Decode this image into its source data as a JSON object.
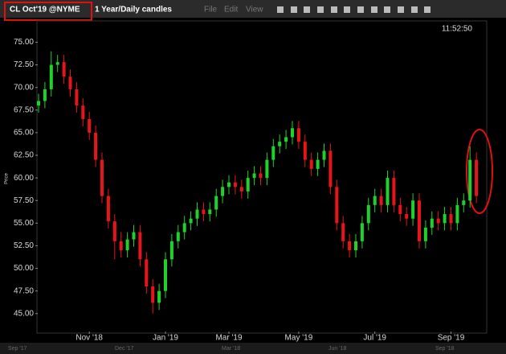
{
  "toolbar": {
    "symbol": "CL Oct'19 @NYME",
    "timeframe": "1 Year/Daily candles",
    "menu": [
      "File",
      "Edit",
      "View"
    ]
  },
  "chart_data": {
    "type": "candlestick",
    "timestamp": "11:52:50",
    "ylabel": "Price",
    "up_color": "#1fd12a",
    "down_color": "#e8141b",
    "categories": [
      null,
      null,
      null,
      null,
      null,
      null,
      null,
      null,
      "Nov '18",
      null,
      null,
      null,
      null,
      null,
      null,
      null,
      null,
      null,
      null,
      null,
      "Jan '19",
      null,
      null,
      null,
      null,
      null,
      null,
      null,
      null,
      null,
      "Mar '19",
      null,
      null,
      null,
      null,
      null,
      null,
      null,
      null,
      null,
      null,
      "May '19",
      null,
      null,
      null,
      null,
      null,
      null,
      null,
      null,
      null,
      null,
      null,
      "Jul '19",
      null,
      null,
      null,
      null,
      null,
      null,
      null,
      null,
      null,
      null,
      null,
      "Sep '19",
      null,
      null,
      null,
      null
    ],
    "open": [
      68,
      68.5,
      69.8,
      72.5,
      72.8,
      71.2,
      69.8,
      68,
      66.5,
      65,
      62,
      58,
      55.2,
      53,
      52,
      53.2,
      54,
      51,
      48,
      46.2,
      47.5,
      51,
      53,
      54,
      55,
      55.5,
      56.5,
      56,
      56.5,
      58,
      59,
      59.5,
      59,
      58.5,
      60,
      60.5,
      60,
      62,
      63.5,
      64,
      64.5,
      65.5,
      64,
      62,
      61,
      62,
      63,
      59,
      55,
      53,
      52,
      53,
      55,
      57,
      58,
      57,
      60,
      57,
      56,
      55.5,
      57.5,
      53,
      54.5,
      55.5,
      55,
      56,
      55,
      57,
      57.5,
      62
    ],
    "high": [
      69.3,
      70.6,
      74,
      73.6,
      73.6,
      72,
      70.6,
      68.8,
      67.3,
      65.8,
      62.8,
      58.8,
      56,
      54,
      54,
      54.8,
      54.8,
      51.8,
      48.8,
      48.3,
      51.8,
      53.8,
      54.8,
      55.8,
      56.3,
      57.3,
      57.3,
      57.3,
      58.8,
      59.8,
      60.3,
      60.3,
      59.8,
      60.8,
      61.3,
      61.3,
      62.8,
      64.3,
      64.8,
      65.3,
      66.3,
      66.3,
      64.8,
      62.8,
      62.8,
      63.8,
      63.8,
      59.8,
      55.8,
      53.8,
      53.8,
      55.8,
      57.8,
      58.8,
      58.8,
      60.8,
      60.8,
      57.8,
      56.8,
      58.3,
      58.3,
      55.3,
      56.3,
      56.3,
      56.8,
      56.8,
      57.8,
      58.3,
      63.5,
      62.8
    ],
    "low": [
      67.2,
      67.7,
      69,
      71.7,
      70.4,
      69,
      67.2,
      65.7,
      64.2,
      61.2,
      57.2,
      54.4,
      51,
      51.2,
      51.2,
      52.4,
      50.2,
      47.2,
      45,
      45.4,
      46.7,
      50.2,
      52.2,
      53.2,
      54.2,
      54.7,
      55.2,
      55.2,
      55.7,
      57.2,
      58.2,
      58.2,
      57.7,
      57.7,
      59.2,
      59.2,
      59.2,
      61.2,
      62.7,
      63.2,
      63.7,
      63.2,
      61.2,
      60.2,
      60.2,
      61.2,
      58.2,
      54.2,
      52.2,
      51.2,
      51.2,
      52.2,
      54.2,
      56.2,
      56.2,
      56.2,
      56.2,
      55.2,
      54.7,
      54.7,
      52.2,
      52.2,
      53.7,
      54.2,
      54.2,
      54.2,
      54.2,
      56.2,
      56.7,
      57.2
    ],
    "close": [
      68.5,
      69.8,
      72.5,
      72.8,
      71.2,
      69.8,
      68,
      66.5,
      65,
      62,
      58,
      55.2,
      53,
      52,
      53.2,
      54,
      51,
      48,
      46.2,
      47.5,
      51,
      53,
      54,
      55,
      55.5,
      56.5,
      56,
      56.5,
      58,
      59,
      59.5,
      59,
      58.5,
      60,
      60.5,
      60,
      62,
      63.5,
      64,
      64.5,
      65.5,
      64,
      62,
      61,
      62,
      63,
      59,
      55,
      53,
      52,
      53,
      55,
      57,
      58,
      57,
      60,
      57,
      56,
      55.5,
      57.5,
      53,
      54.5,
      55.5,
      55,
      56,
      55,
      57,
      57.5,
      62,
      58
    ],
    "ylim": [
      43.2,
      77.0
    ],
    "yticks": [
      {
        "value": 45,
        "label": "45.00"
      },
      {
        "value": 47.5,
        "label": "47.50"
      },
      {
        "value": 50,
        "label": "50.00"
      },
      {
        "value": 52.5,
        "label": "52.50"
      },
      {
        "value": 55,
        "label": "55.00"
      },
      {
        "value": 57.5,
        "label": "57.50"
      },
      {
        "value": 60,
        "label": "60.00"
      },
      {
        "value": 62.5,
        "label": "62.50"
      },
      {
        "value": 65,
        "label": "65.00"
      },
      {
        "value": 67.5,
        "label": "67.50"
      },
      {
        "value": 70,
        "label": "70.00"
      },
      {
        "value": 72.5,
        "label": "72.50"
      },
      {
        "value": 75,
        "label": "75.00"
      }
    ]
  },
  "navigator": {
    "labels": [
      "Sep '17",
      "Dec '17",
      "Mar '18",
      "Jun '18",
      "Sep '18"
    ]
  }
}
